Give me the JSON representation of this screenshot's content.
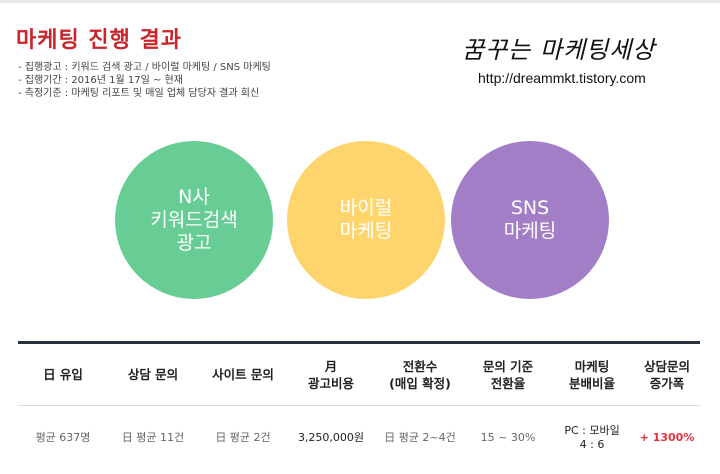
{
  "header": {
    "title": "마케팅 진행 결과",
    "info_lines": [
      "- 집행광고 : 키워드 검색 광고 / 바이럴 마케팅 / SNS 마케팅",
      "- 집행기간 : 2016년 1월 17일 ~ 현재",
      "- 측정기준 : 마케팅 리포트 및 매일 업체 담당자 결과 회신"
    ]
  },
  "brand": {
    "script_text": "꿈꾸는 마케팅세상",
    "url": "http://dreammkt.tistory.com"
  },
  "circles": [
    {
      "label": "N사\n키워드검색\n광고",
      "color": "#68cd94"
    },
    {
      "label": "바이럴\n마케팅",
      "color": "#fed56c"
    },
    {
      "label": "SNS\n마케팅",
      "color": "#a27ec6"
    }
  ],
  "table": {
    "headers": [
      "日 유입",
      "상담 문의",
      "사이트 문의",
      "月\n광고비용",
      "전환수\n(매입 확정)",
      "문의 기준\n전환율",
      "마케팅\n분배비율",
      "상담문의\n증가폭"
    ],
    "row": [
      "평균 637명",
      "日 평균 11건",
      "日 평균 2건",
      "3,250,000원",
      "日 평균 2~4건",
      "15 ~ 30%",
      "PC : 모바일\n4 : 6",
      "+ 1300%"
    ]
  },
  "colors": {
    "title": "#c8262b",
    "table_rule": "#2b3040",
    "highlight": "#e2323f"
  }
}
